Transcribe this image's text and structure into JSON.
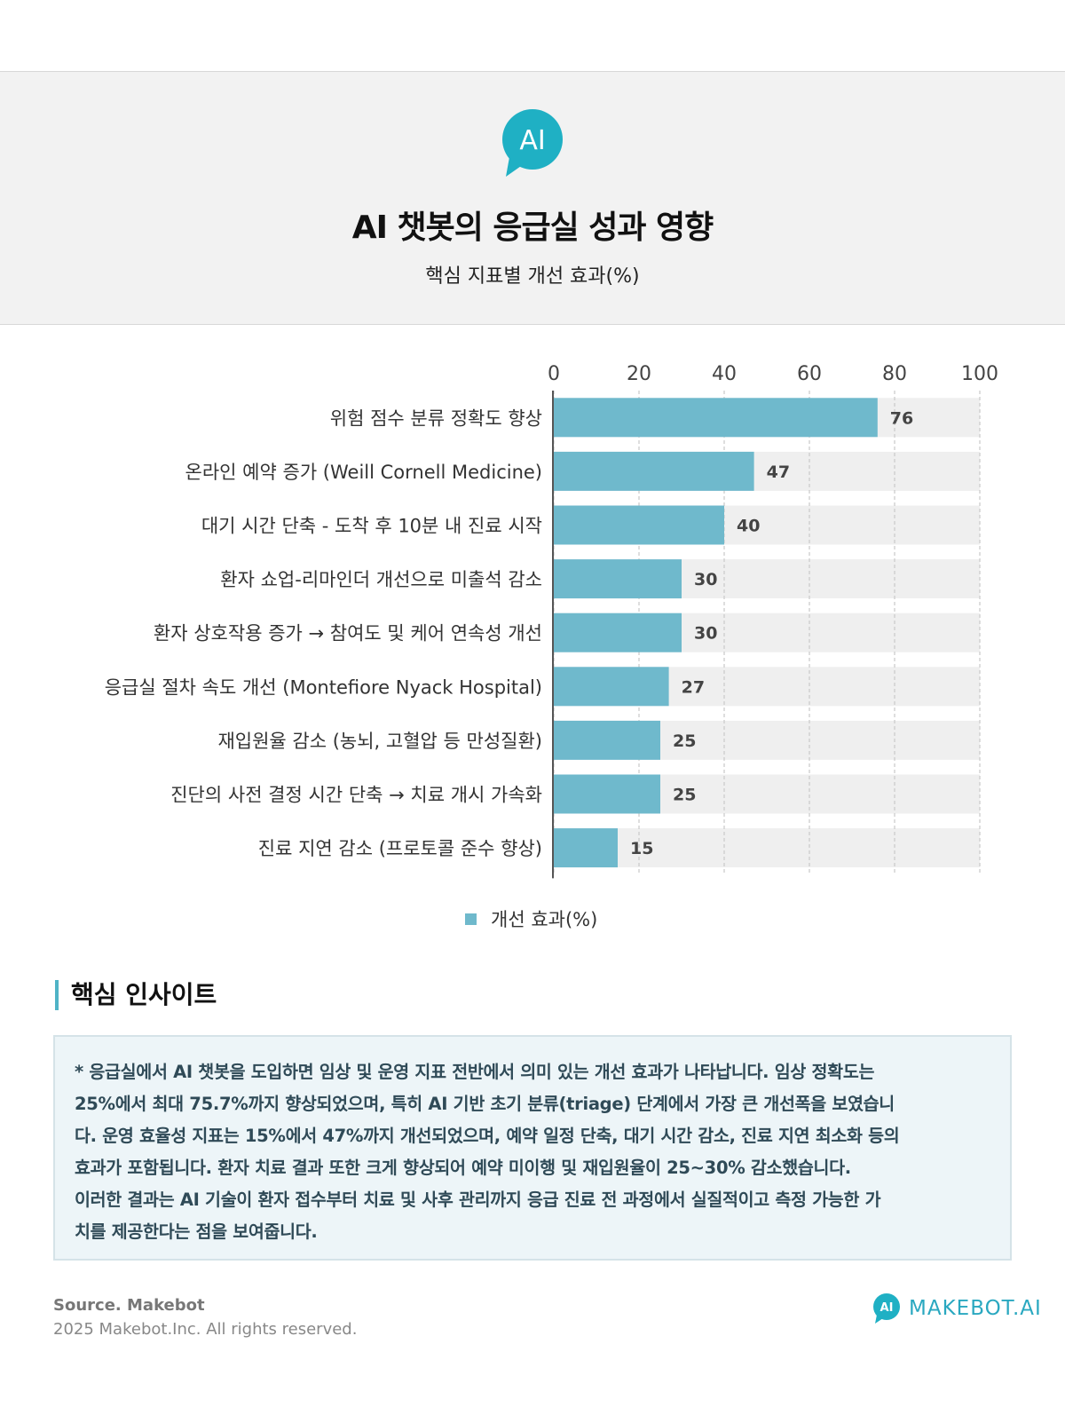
{
  "header": {
    "badge_text": "AI",
    "title": "AI 챗봇의 응급실 성과 영향",
    "subtitle": "핵심 지표별 개선 효과(%)"
  },
  "colors": {
    "bar": "#6fb9cc",
    "track": "#efefef",
    "accent": "#1fb0c4",
    "header_band": "#f2f2f2",
    "insight_box": "#edf5f8",
    "insight_text": "#2f4a57"
  },
  "chart_data": {
    "type": "bar",
    "orientation": "horizontal",
    "categories": [
      "위험 점수 분류 정확도 향상",
      "온라인 예약 증가 (Weill Cornell Medicine)",
      "대기 시간 단축 - 도착 후 10분 내 진료 시작",
      "환자 쇼업-리마인더 개선으로 미출석 감소",
      "환자 상호작용 증가 → 참여도 및 케어 연속성 개선",
      "응급실 절차 속도 개선 (Montefiore Nyack Hospital)",
      "재입원율 감소 (농뇌, 고혈압 등 만성질환)",
      "진단의 사전 결정 시간 단축 → 치료 개시 가속화",
      "진료 지연 감소 (프로토콜 준수 향상)"
    ],
    "series": [
      {
        "name": "개선 효과(%)",
        "values": [
          76,
          47,
          40,
          30,
          30,
          27,
          25,
          25,
          15
        ]
      }
    ],
    "xlim": [
      0,
      100
    ],
    "xticks": [
      0,
      20,
      40,
      60,
      80,
      100
    ],
    "axis_position": "top",
    "grid": true,
    "legend_position": "bottom-center",
    "data_labels": true
  },
  "legend": {
    "label": "개선 효과(%)"
  },
  "insight": {
    "heading": "핵심 인사이트",
    "lines": [
      "* 응급실에서 AI 챗봇을 도입하면 임상 및 운영 지표 전반에서 의미 있는 개선 효과가 나타납니다. 임상 정확도는",
      "25%에서 최대 75.7%까지 향상되었으며, 특히 AI 기반 초기 분류(triage) 단계에서 가장 큰 개선폭을 보였습니",
      "다. 운영 효율성 지표는 15%에서 47%까지 개선되었으며, 예약 일정 단축, 대기 시간 감소, 진료 지연 최소화 등의",
      "효과가 포함됩니다. 환자 치료 결과 또한 크게 향상되어 예약 미이행 및 재입원율이 25~30% 감소했습니다.",
      "이러한 결과는 AI 기술이 환자 접수부터 치료 및 사후 관리까지 응급 진료 전 과정에서 실질적이고 측정 가능한 가",
      "치를 제공한다는 점을 보여줍니다."
    ]
  },
  "footer": {
    "source": "Source. Makebot",
    "copyright": "2025 Makebot.Inc. All rights reserved.",
    "brand_badge": "AI",
    "brand_name": "MAKEBOT.AI"
  }
}
